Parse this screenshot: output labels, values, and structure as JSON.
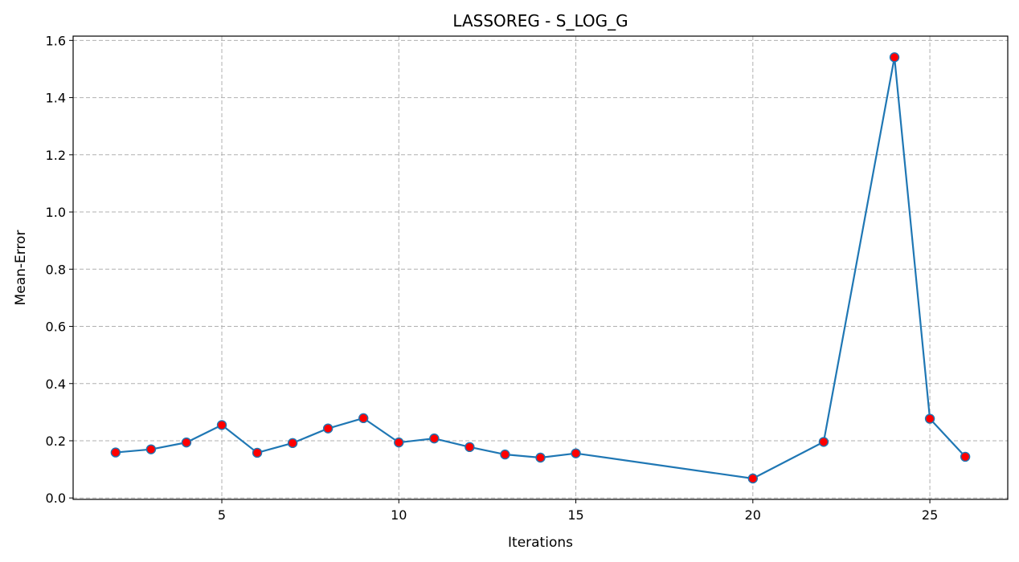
{
  "chart_data": {
    "type": "line",
    "title": "LASSOREG - S_LOG_G",
    "xlabel": "Iterations",
    "ylabel": "Mean-Error",
    "xlim": [
      0.8,
      27.2
    ],
    "ylim": [
      -0.005,
      1.615
    ],
    "xticks": [
      5,
      10,
      15,
      20,
      25
    ],
    "yticks": [
      0.0,
      0.2,
      0.4,
      0.6,
      0.8,
      1.0,
      1.2,
      1.4,
      1.6
    ],
    "grid": true,
    "series": [
      {
        "line_color": "#1f77b4",
        "marker_color": "#ff0000",
        "x": [
          2,
          3,
          4,
          5,
          6,
          7,
          8,
          9,
          10,
          11,
          12,
          13,
          14,
          15,
          20,
          22,
          24,
          25,
          26
        ],
        "y": [
          0.159,
          0.17,
          0.194,
          0.255,
          0.158,
          0.192,
          0.243,
          0.279,
          0.194,
          0.208,
          0.178,
          0.152,
          0.141,
          0.156,
          0.068,
          0.196,
          1.541,
          0.277,
          0.144
        ]
      }
    ]
  }
}
